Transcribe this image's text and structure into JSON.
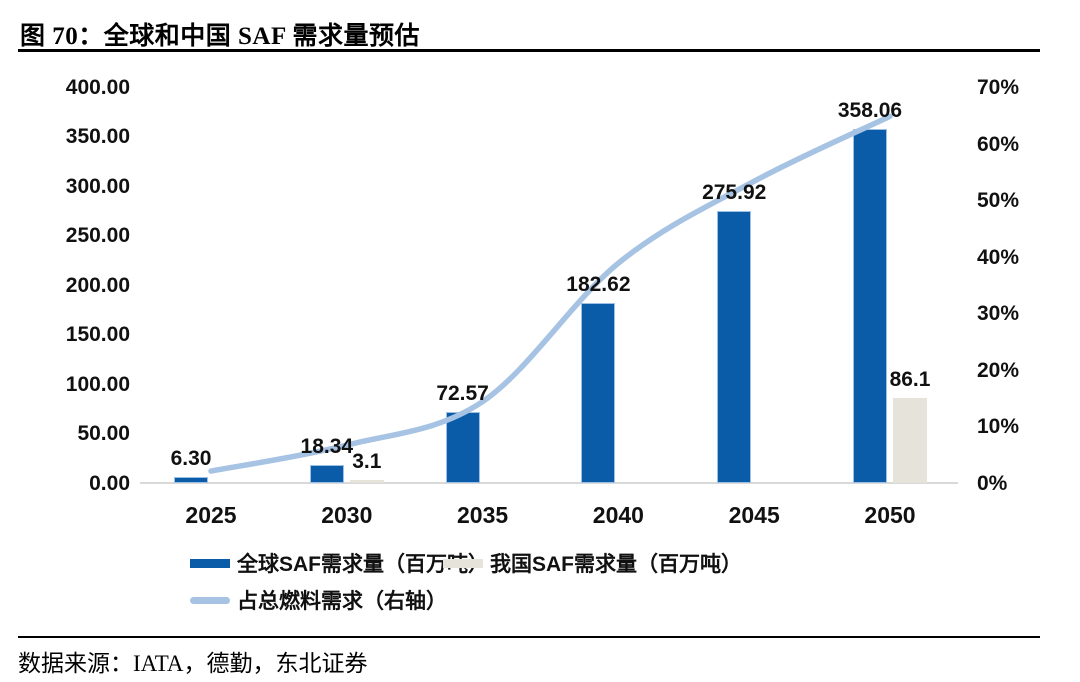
{
  "header": {
    "title": "图 70：全球和中国 SAF 需求量预估"
  },
  "footer": {
    "source": "数据来源：IATA，德勤，东北证券"
  },
  "chart_data": {
    "type": "bar",
    "subtype": "combo-bar-line",
    "title": "图 70：全球和中国 SAF 需求量预估",
    "categories": [
      "2025",
      "2030",
      "2035",
      "2040",
      "2045",
      "2050"
    ],
    "series": [
      {
        "name": "全球SAF需求量（百万吨）",
        "type": "bar",
        "axis": "left",
        "color": "#0b5ca8",
        "border_color": "#9dc0e4",
        "values": [
          6.3,
          18.34,
          72.57,
          182.62,
          275.92,
          358.06
        ],
        "labels": [
          "6.30",
          "18.34",
          "72.57",
          "182.62",
          "275.92",
          "358.06"
        ]
      },
      {
        "name": "我国SAF需求量（百万吨）",
        "type": "bar",
        "axis": "left",
        "color": "#e6e3db",
        "border_color": "#e6e3db",
        "values": [
          0,
          3.1,
          0,
          0,
          0,
          86.1
        ],
        "labels": [
          "",
          "3.1",
          "",
          "",
          "",
          "86.1"
        ]
      },
      {
        "name": "占总燃料需求（右轴）",
        "type": "line",
        "axis": "right",
        "color": "#a6c3e4",
        "values_percent_estimated": [
          2.2,
          6.8,
          14.5,
          39,
          53.5,
          65
        ]
      }
    ],
    "left_axis": {
      "min": 0,
      "max": 400,
      "tick_step": 50,
      "tick_labels": [
        "0.00",
        "50.00",
        "100.00",
        "150.00",
        "200.00",
        "250.00",
        "300.00",
        "350.00",
        "400.00"
      ]
    },
    "right_axis": {
      "min_percent": 0,
      "max_percent": 70,
      "tick_step_percent": 10,
      "tick_labels": [
        "0%",
        "10%",
        "20%",
        "30%",
        "40%",
        "50%",
        "60%",
        "70%"
      ]
    },
    "grid": false,
    "legend_position": "bottom",
    "axis_line_color": "#d9d9d9"
  }
}
